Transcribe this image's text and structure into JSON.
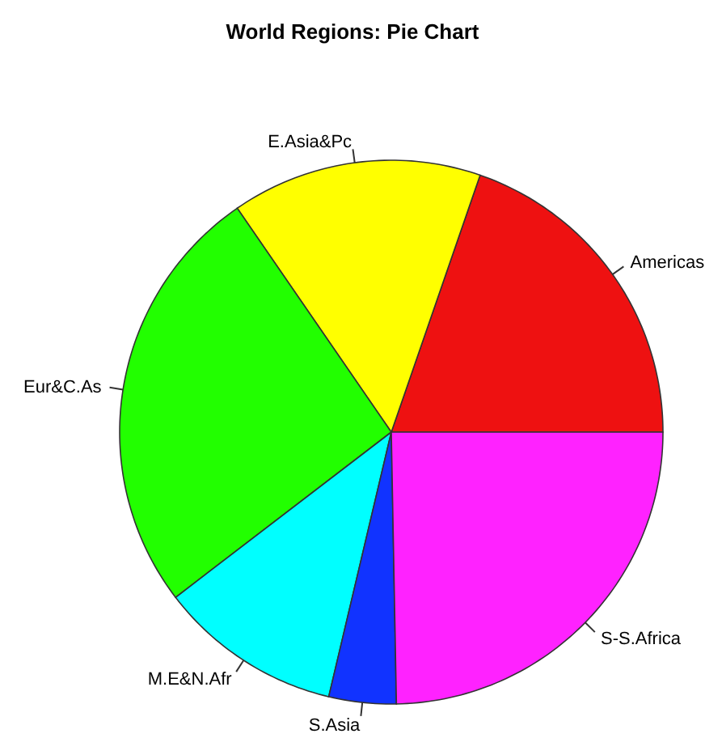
{
  "chart_data": {
    "type": "pie",
    "title": "World Regions: Pie Chart",
    "categories": [
      "Americas",
      "E.Asia&Pc",
      "Eur&C.As",
      "M.E&N.Afr",
      "S.Asia",
      "S-S.Africa"
    ],
    "values": [
      19.7,
      14.9,
      25.8,
      10.9,
      4.0,
      24.7
    ],
    "colors": [
      "#ee1111",
      "#ffff00",
      "#22ff00",
      "#00ffff",
      "#1133ff",
      "#ff22ff"
    ]
  }
}
